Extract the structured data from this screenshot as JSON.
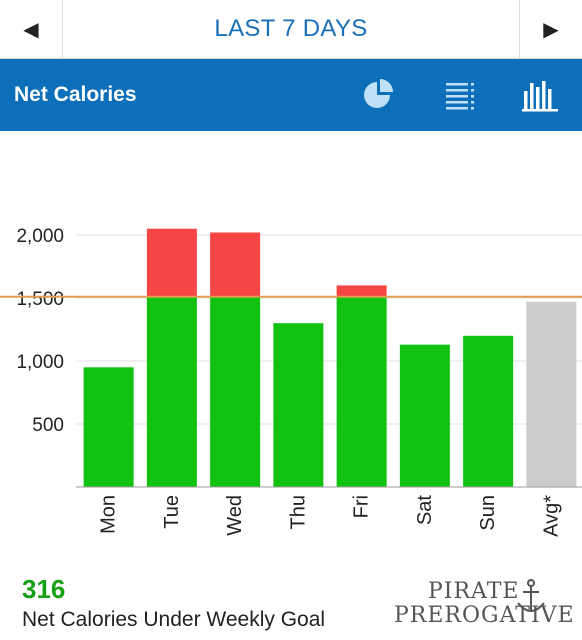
{
  "topbar": {
    "prev_label": "◀",
    "next_label": "▶",
    "range_title": "LAST 7 DAYS"
  },
  "header": {
    "title": "Net Calories",
    "icons": [
      "pie-chart-icon",
      "list-icon",
      "bar-chart-icon"
    ]
  },
  "colors": {
    "under_goal": "#11c211",
    "over_goal": "#f64545",
    "average": "#cccccc",
    "goal_line": "#e0a050",
    "header_bg": "#0d6fba",
    "accent_text": "#1a70b8",
    "summary_green": "#16a016"
  },
  "chart_data": {
    "type": "bar",
    "categories": [
      "Mon",
      "Tue",
      "Wed",
      "Thu",
      "Fri",
      "Sat",
      "Sun",
      "Avg*"
    ],
    "values": [
      950,
      2050,
      2020,
      1300,
      1600,
      1130,
      1200,
      1470
    ],
    "goal": 1510,
    "ylim": [
      0,
      2400
    ],
    "yticks": [
      500,
      1000,
      1500,
      2000
    ],
    "ytick_labels": [
      "500",
      "1,000",
      "1,500",
      "2,000"
    ],
    "grid": true,
    "title": "",
    "xlabel": "",
    "ylabel": ""
  },
  "summary": {
    "value": "316",
    "label": "Net Calories Under Weekly Goal"
  },
  "watermark": {
    "line1": "PIRATE",
    "line2": "PREROGATIVE"
  }
}
